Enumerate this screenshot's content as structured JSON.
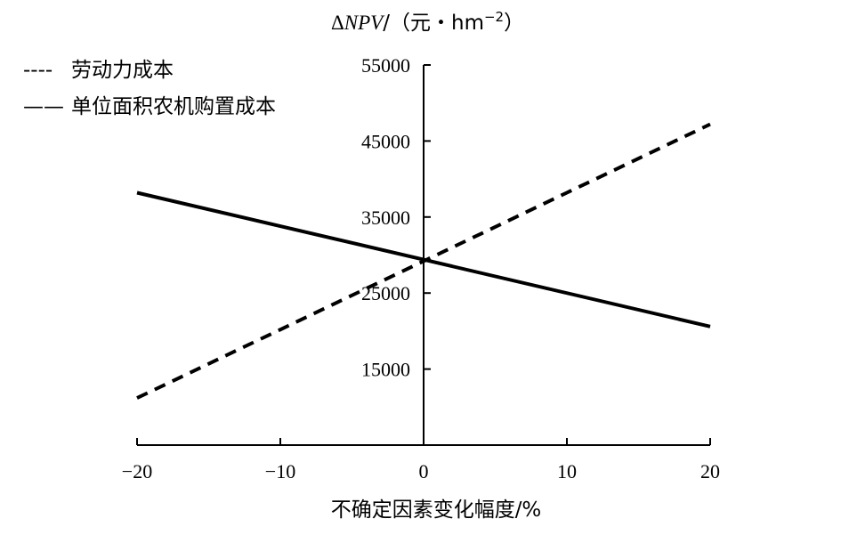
{
  "chart_data": {
    "type": "line",
    "title": "",
    "ylabel": {
      "delta": "Δ",
      "var": "NPV",
      "unit": "/（元・hm",
      "exp": "−2",
      "close": "）"
    },
    "xlabel": "不确定因素变化幅度/%",
    "xlim": [
      -20,
      20
    ],
    "ylim": [
      5000,
      55000
    ],
    "x_ticks": [
      -20,
      -10,
      0,
      10,
      20
    ],
    "x_tick_labels": [
      "−20",
      "−10",
      "0",
      "10",
      "20"
    ],
    "y_tick_labels_shown": [
      15000,
      25000,
      35000,
      45000,
      55000
    ],
    "y_ticks": [
      5000,
      15000,
      25000,
      35000,
      45000,
      55000
    ],
    "legend_position": "top-left",
    "series": [
      {
        "name": "劳动力成本",
        "style": "dashed",
        "legend_marker": "----",
        "x": [
          -20,
          20
        ],
        "y": [
          11200,
          47200
        ]
      },
      {
        "name": "单位面积农机购置成本",
        "style": "solid",
        "legend_marker": "——",
        "x": [
          -20,
          20
        ],
        "y": [
          38200,
          20600
        ]
      }
    ]
  }
}
